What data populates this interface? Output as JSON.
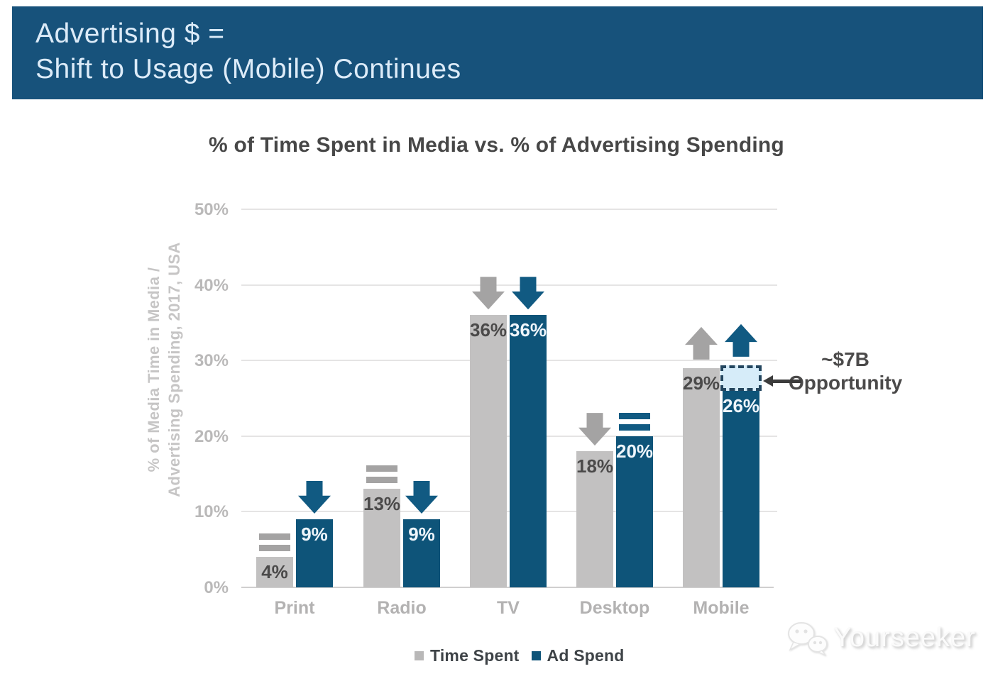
{
  "banner": {
    "line1": "Advertising $ =",
    "line2": "Shift to Usage (Mobile) Continues",
    "bg_color": "#17527b",
    "text_color": "#dcebf8"
  },
  "chart_data": {
    "type": "bar",
    "title": "% of Time Spent in Media vs. % of Advertising Spending",
    "ylabel": [
      "% of Media Time in Media /",
      "Advertising Spending, 2017, USA"
    ],
    "categories": [
      "Print",
      "Radio",
      "TV",
      "Desktop",
      "Mobile"
    ],
    "series": [
      {
        "name": "Time Spent",
        "color": "#c2c1c1",
        "label_color": "#4b4a4a",
        "marker_color": "#a4a3a3",
        "values": [
          4,
          13,
          36,
          18,
          29
        ],
        "trends": [
          "flat",
          "flat",
          "down",
          "down",
          "up"
        ]
      },
      {
        "name": "Ad Spend",
        "color": "#0e5479",
        "label_color": "#eef5fb",
        "marker_color": "#115a82",
        "values": [
          9,
          9,
          36,
          20,
          26
        ],
        "trends": [
          "down",
          "down",
          "down",
          "flat",
          "up"
        ]
      }
    ],
    "ylim": [
      0,
      50
    ],
    "yticks": [
      {
        "label": "50%",
        "value": 50
      },
      {
        "label": "40%",
        "value": 40
      },
      {
        "label": "30%",
        "value": 30
      },
      {
        "label": "20%",
        "value": 20
      },
      {
        "label": "10%",
        "value": 10
      },
      {
        "label": "0%",
        "value": 0
      }
    ],
    "grid": true,
    "legend_position": "bottom",
    "opportunity_box": {
      "category": "Mobile",
      "series": "Ad Spend",
      "from_pct": 26,
      "to_pct": 29,
      "fill": "#d6ecf9",
      "border": "#24465f"
    },
    "annotation": {
      "line1": "~$7B",
      "line2": "Opportunity"
    }
  },
  "legend": {
    "items": [
      {
        "label": "Time Spent",
        "color": "#b9b8b8"
      },
      {
        "label": "Ad Spend",
        "color": "#0e5479"
      }
    ]
  },
  "watermark": {
    "text": "Yourseeker",
    "icon": "wechat-icon"
  }
}
